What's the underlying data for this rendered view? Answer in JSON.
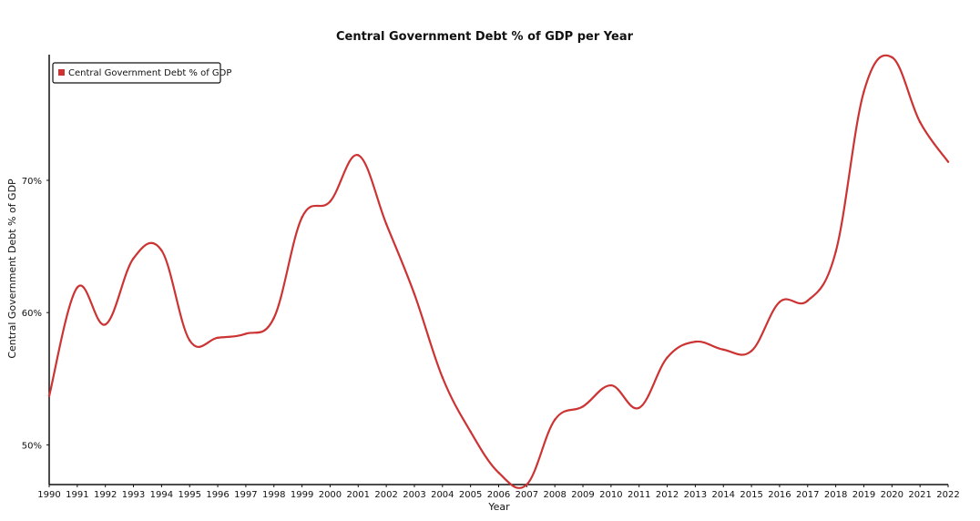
{
  "chart_data": {
    "type": "line",
    "title": "Central Government Debt % of GDP per Year",
    "xlabel": "Year",
    "ylabel": "Central Government Debt % of GDP",
    "x": [
      1990,
      1991,
      1992,
      1993,
      1994,
      1995,
      1996,
      1997,
      1998,
      1999,
      2000,
      2001,
      2002,
      2003,
      2004,
      2005,
      2006,
      2007,
      2008,
      2009,
      2010,
      2011,
      2012,
      2013,
      2014,
      2015,
      2016,
      2017,
      2018,
      2019,
      2020,
      2021,
      2022
    ],
    "x_tick_labels": [
      "1990",
      "1991",
      "1992",
      "1993",
      "1994",
      "1995",
      "1996",
      "1997",
      "1998",
      "1999",
      "2000",
      "2001",
      "2002",
      "2003",
      "2004",
      "2005",
      "2006",
      "2007",
      "2008",
      "2009",
      "2010",
      "2011",
      "2012",
      "2013",
      "2014",
      "2015",
      "2016",
      "2017",
      "2018",
      "2019",
      "2020",
      "2021",
      "2022"
    ],
    "y_ticks": [
      50,
      60,
      70
    ],
    "y_tick_labels": [
      "50%",
      "60%",
      "70%"
    ],
    "xlim": [
      1990,
      2022
    ],
    "ylim": [
      47,
      79.5
    ],
    "grid": false,
    "legend_position": "top-left",
    "series": [
      {
        "name": "Central Government Debt % of GDP",
        "color": "#cc3333",
        "values": [
          53.7,
          61.9,
          59.1,
          64.1,
          64.7,
          57.9,
          58.1,
          58.4,
          59.6,
          67.2,
          68.4,
          71.9,
          66.7,
          61.4,
          55.1,
          51.0,
          47.9,
          47.0,
          51.9,
          52.9,
          54.5,
          52.8,
          56.6,
          57.8,
          57.2,
          57.1,
          60.8,
          60.9,
          64.6,
          76.7,
          79.3,
          74.4,
          71.4
        ]
      }
    ]
  }
}
